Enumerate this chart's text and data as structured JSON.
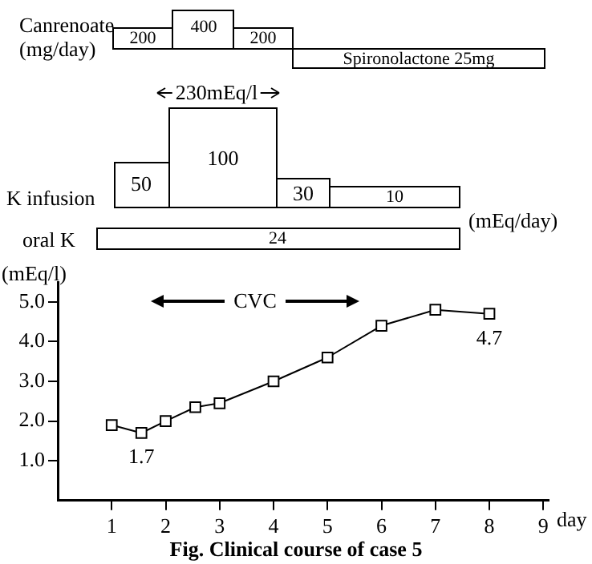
{
  "chart_data": [
    {
      "type": "other",
      "annotations": [
        "Canrenoate",
        "(mg/day)",
        "200",
        "400",
        "200",
        "Spironolactone 25mg",
        "230mEq/l",
        "100",
        "K infusion",
        "50",
        "30",
        "10",
        "(mEq/day)",
        "oral K",
        "24"
      ]
    },
    {
      "type": "line",
      "title": "Fig.    Clinical course of case 5",
      "xlabel": "day",
      "ylabel": "(mEq/l)",
      "x": [
        1,
        1.55,
        2,
        2.55,
        3,
        4,
        5,
        6,
        7,
        8
      ],
      "series": [
        {
          "color": "#000000",
          "values": [
            1.9,
            1.7,
            2.0,
            2.35,
            2.45,
            3.0,
            3.6,
            4.4,
            4.8,
            4.7
          ],
          "value_labels": [
            null,
            "1.7",
            null,
            null,
            null,
            null,
            null,
            null,
            null,
            "4.7"
          ]
        }
      ],
      "xlim": [
        0,
        9.1
      ],
      "xticks": [
        1,
        2,
        3,
        4,
        5,
        6,
        7,
        8,
        9
      ],
      "ylim": [
        0,
        5.5
      ],
      "yticks": [
        {
          "value": 1,
          "label": "1.0"
        },
        {
          "value": 2,
          "label": "2.0"
        },
        {
          "value": 3,
          "label": "3.0"
        },
        {
          "value": 4,
          "label": "4.0"
        },
        {
          "value": 5,
          "label": "5.0"
        }
      ],
      "annotations": [
        "CVC"
      ],
      "marker": "square",
      "line_style": "solid",
      "grid": false,
      "legend": false
    }
  ]
}
